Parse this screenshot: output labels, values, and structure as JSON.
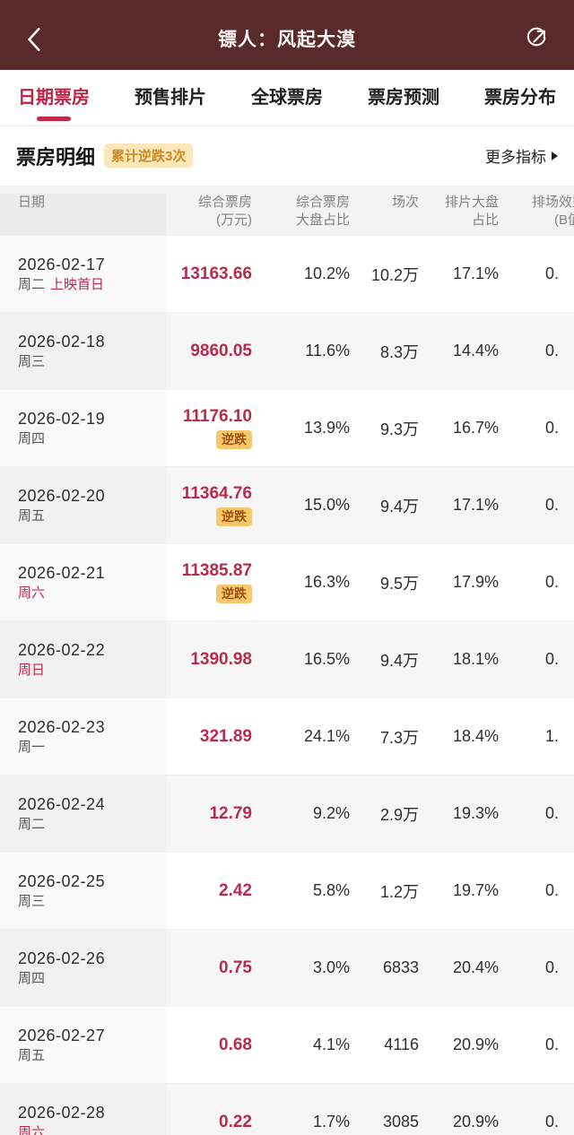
{
  "colors": {
    "appbar_bg": "#582a2c",
    "accent_red": "#bc2b4d",
    "stripe_gray": "#f6f6f6",
    "badge_amber_bg": "#fbe7ba",
    "badge_amber_text": "#cf8a1f",
    "nidie_bg": "#f6c76b",
    "nidie_text": "#9c5210"
  },
  "appbar": {
    "title": "镖人：风起大漠",
    "back_icon": "chevron-left",
    "share_icon": "share-external"
  },
  "tabs": [
    {
      "label": "日期票房",
      "active": true
    },
    {
      "label": "预售排片",
      "active": false
    },
    {
      "label": "全球票房",
      "active": false
    },
    {
      "label": "票房预测",
      "active": false
    },
    {
      "label": "票房分布",
      "active": false
    }
  ],
  "section": {
    "title": "票房明细",
    "badge": "累计逆跌3次",
    "more_label": "更多指标"
  },
  "table": {
    "columns": [
      {
        "line1": "日期",
        "line2": ""
      },
      {
        "line1": "综合票房",
        "line2": "(万元)"
      },
      {
        "line1": "综合票房",
        "line2": "大盘占比"
      },
      {
        "line1": "场次",
        "line2": ""
      },
      {
        "line1": "排片大盘",
        "line2": "占比"
      },
      {
        "line1": "排场效益",
        "line2": "(B值)"
      }
    ],
    "nidie_label": "逆跌",
    "rows": [
      {
        "date": "2026-02-17",
        "weekday": "周二",
        "weekend": false,
        "tag": "上映首日",
        "boxoffice": "13163.66",
        "nidie": false,
        "share": "10.2%",
        "sessions": "10.2万",
        "schedule_share": "17.1%",
        "b_value": "0."
      },
      {
        "date": "2026-02-18",
        "weekday": "周三",
        "weekend": false,
        "tag": "",
        "boxoffice": "9860.05",
        "nidie": false,
        "share": "11.6%",
        "sessions": "8.3万",
        "schedule_share": "14.4%",
        "b_value": "0."
      },
      {
        "date": "2026-02-19",
        "weekday": "周四",
        "weekend": false,
        "tag": "",
        "boxoffice": "11176.10",
        "nidie": true,
        "share": "13.9%",
        "sessions": "9.3万",
        "schedule_share": "16.7%",
        "b_value": "0."
      },
      {
        "date": "2026-02-20",
        "weekday": "周五",
        "weekend": false,
        "tag": "",
        "boxoffice": "11364.76",
        "nidie": true,
        "share": "15.0%",
        "sessions": "9.4万",
        "schedule_share": "17.1%",
        "b_value": "0."
      },
      {
        "date": "2026-02-21",
        "weekday": "周六",
        "weekend": true,
        "tag": "",
        "boxoffice": "11385.87",
        "nidie": true,
        "share": "16.3%",
        "sessions": "9.5万",
        "schedule_share": "17.9%",
        "b_value": "0."
      },
      {
        "date": "2026-02-22",
        "weekday": "周日",
        "weekend": true,
        "tag": "",
        "boxoffice": "1390.98",
        "nidie": false,
        "share": "16.5%",
        "sessions": "9.4万",
        "schedule_share": "18.1%",
        "b_value": "0."
      },
      {
        "date": "2026-02-23",
        "weekday": "周一",
        "weekend": false,
        "tag": "",
        "boxoffice": "321.89",
        "nidie": false,
        "share": "24.1%",
        "sessions": "7.3万",
        "schedule_share": "18.4%",
        "b_value": "1."
      },
      {
        "date": "2026-02-24",
        "weekday": "周二",
        "weekend": false,
        "tag": "",
        "boxoffice": "12.79",
        "nidie": false,
        "share": "9.2%",
        "sessions": "2.9万",
        "schedule_share": "19.3%",
        "b_value": "0."
      },
      {
        "date": "2026-02-25",
        "weekday": "周三",
        "weekend": false,
        "tag": "",
        "boxoffice": "2.42",
        "nidie": false,
        "share": "5.8%",
        "sessions": "1.2万",
        "schedule_share": "19.7%",
        "b_value": "0."
      },
      {
        "date": "2026-02-26",
        "weekday": "周四",
        "weekend": false,
        "tag": "",
        "boxoffice": "0.75",
        "nidie": false,
        "share": "3.0%",
        "sessions": "6833",
        "schedule_share": "20.4%",
        "b_value": "0."
      },
      {
        "date": "2026-02-27",
        "weekday": "周五",
        "weekend": false,
        "tag": "",
        "boxoffice": "0.68",
        "nidie": false,
        "share": "4.1%",
        "sessions": "4116",
        "schedule_share": "20.9%",
        "b_value": "0."
      },
      {
        "date": "2026-02-28",
        "weekday": "周六",
        "weekend": true,
        "tag": "",
        "boxoffice": "0.22",
        "nidie": false,
        "share": "1.7%",
        "sessions": "3085",
        "schedule_share": "20.9%",
        "b_value": "0."
      }
    ]
  }
}
